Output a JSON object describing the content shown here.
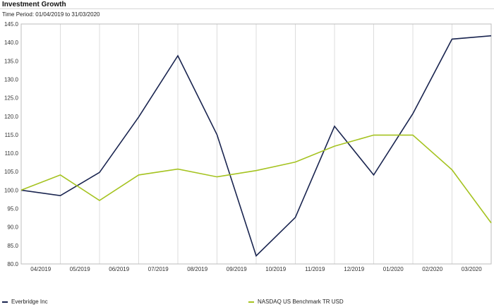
{
  "chart_data": {
    "type": "line",
    "title": "Investment Growth",
    "subtitle": "Time Period: 01/04/2019 to 31/03/2020",
    "xlabel": "",
    "ylabel": "",
    "ylim": [
      80,
      145
    ],
    "y_ticks": [
      "80.0",
      "85.0",
      "90.0",
      "95.0",
      "100.0",
      "105.0",
      "110.0",
      "115.0",
      "120.0",
      "125.0",
      "130.0",
      "135.0",
      "140.0",
      "145.0"
    ],
    "x_ticks": [
      "04/2019",
      "05/2019",
      "06/2019",
      "07/2019",
      "08/2019",
      "09/2019",
      "10/2019",
      "11/2019",
      "12/2019",
      "01/2020",
      "02/2020",
      "03/2020"
    ],
    "grid": "vertical",
    "legend_position": "bottom",
    "series": [
      {
        "name": "Everbridge Inc",
        "color": "#1a2550",
        "values": [
          100.0,
          98.5,
          104.8,
          119.8,
          136.4,
          115.0,
          82.2,
          92.6,
          117.3,
          104.1,
          120.7,
          140.9,
          141.8
        ]
      },
      {
        "name": "NASDAQ US Benchmark TR USD",
        "color": "#a5c320",
        "values": [
          100.0,
          104.1,
          97.2,
          104.1,
          105.7,
          103.6,
          105.3,
          107.6,
          111.9,
          114.9,
          114.9,
          105.5,
          91.1
        ]
      }
    ]
  }
}
